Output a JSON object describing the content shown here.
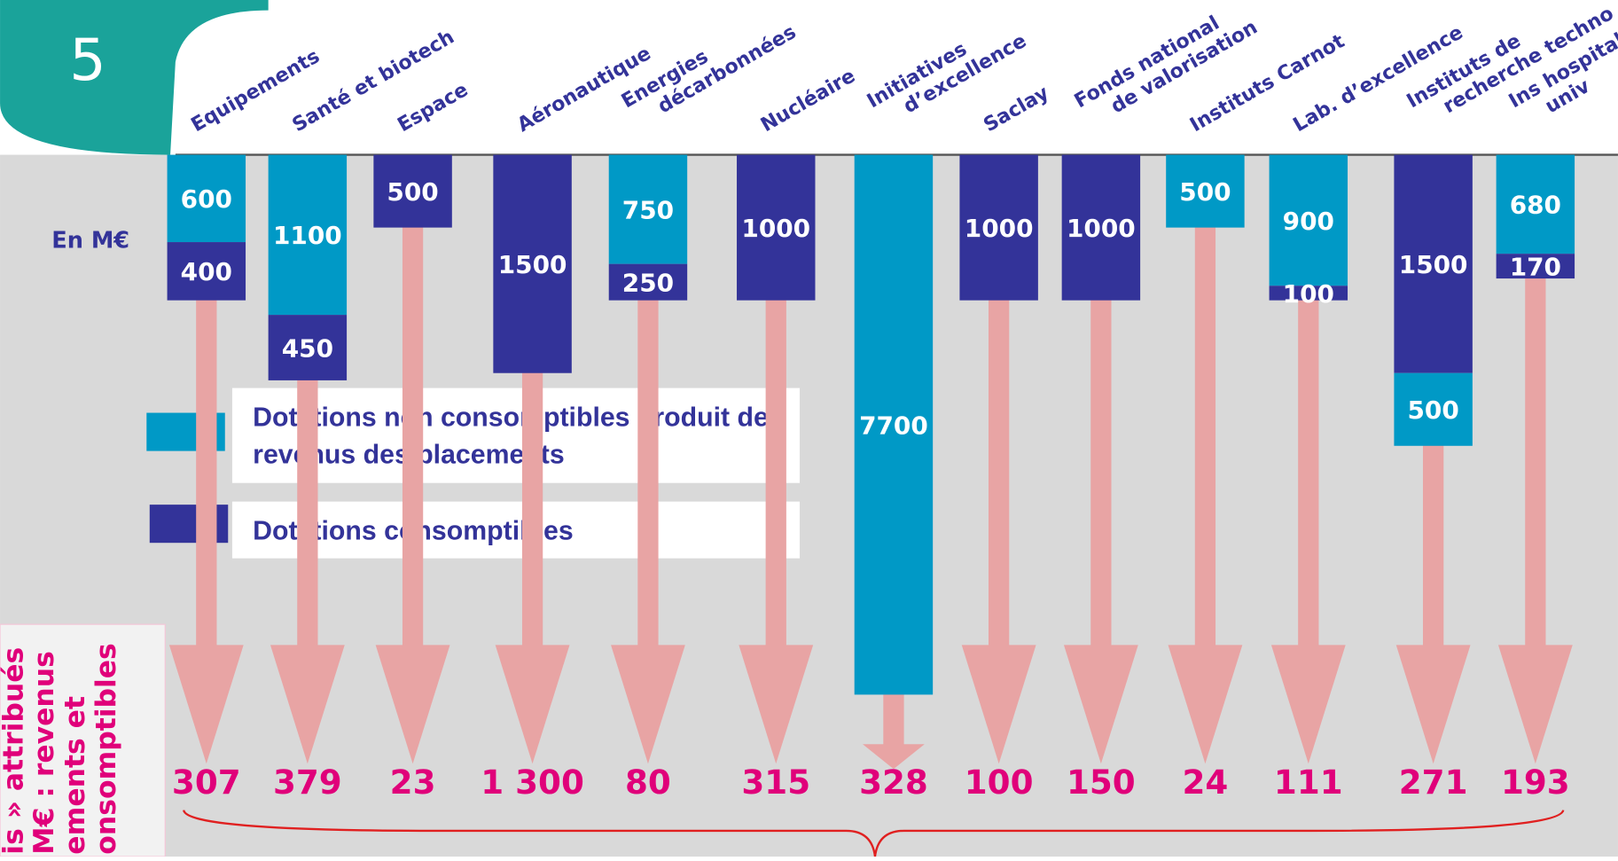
{
  "chart_data": {
    "type": "bar",
    "badge": "5",
    "unit_label": "En M€",
    "side_label": [
      "is » attribués",
      "M€ : revenus",
      "ements et",
      "onsomptibles"
    ],
    "categories": [
      [
        "Equipements"
      ],
      [
        "Santé et biotech"
      ],
      [
        "Espace"
      ],
      [
        "Aéronautique"
      ],
      [
        "Energies",
        "décarbonnées"
      ],
      [
        "Nucléaire"
      ],
      [
        "Initiatives",
        "d’excellence"
      ],
      [
        "Saclay"
      ],
      [
        "Fonds national",
        "de valorisation"
      ],
      [
        "Instituts Carnot"
      ],
      [
        "Lab. d’excellence"
      ],
      [
        "Instituts de",
        "recherche techno"
      ],
      [
        "Ins hospitalo",
        "univ"
      ]
    ],
    "series": [
      {
        "name": "Dotations non consomptibles produit des revenus des placements",
        "color": "#0099c6",
        "values": [
          600,
          1100,
          null,
          null,
          750,
          null,
          7700,
          null,
          null,
          500,
          900,
          500,
          680
        ]
      },
      {
        "name": "Dotations consomptibles",
        "color": "#333399",
        "values": [
          400,
          450,
          500,
          1500,
          250,
          1000,
          null,
          1000,
          1000,
          null,
          100,
          1500,
          170
        ]
      }
    ],
    "annual_values": [
      307,
      379,
      23,
      1300,
      80,
      315,
      328,
      100,
      150,
      24,
      111,
      271,
      193
    ],
    "annual_value_labels": [
      "307",
      "379",
      "23",
      "1 300",
      "80",
      "315",
      "328",
      "100",
      "150",
      "24",
      "111",
      "271",
      "193"
    ]
  }
}
